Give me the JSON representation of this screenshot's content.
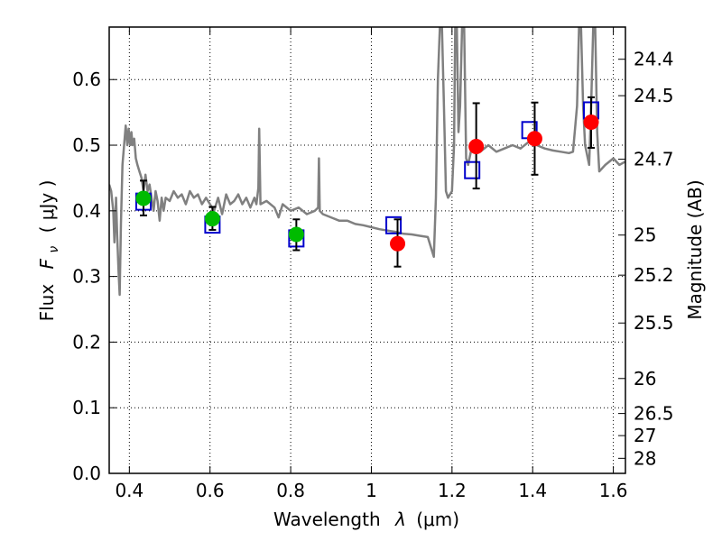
{
  "chart_data": {
    "type": "scatter",
    "xlabel_main": "Wavelength",
    "xlabel_symbol": "λ",
    "xlabel_unit": "(μm)",
    "ylabel_main": "Flux",
    "ylabel_symbol": "F",
    "ylabel_subscript": "ν",
    "ylabel_unit": "( μJy )",
    "y2label": "Magnitude (AB)",
    "xlim": [
      0.35,
      1.63
    ],
    "ylim": [
      0.0,
      0.68
    ],
    "grid": true,
    "x_ticks": [
      {
        "value": 0.4,
        "label": "0.4"
      },
      {
        "value": 0.6,
        "label": "0.6"
      },
      {
        "value": 0.8,
        "label": "0.8"
      },
      {
        "value": 1.0,
        "label": "1"
      },
      {
        "value": 1.2,
        "label": "1.2"
      },
      {
        "value": 1.4,
        "label": "1.4"
      },
      {
        "value": 1.6,
        "label": "1.6"
      }
    ],
    "y_ticks": [
      {
        "value": 0.0,
        "label": "0.0"
      },
      {
        "value": 0.1,
        "label": "0.1"
      },
      {
        "value": 0.2,
        "label": "0.2"
      },
      {
        "value": 0.3,
        "label": "0.3"
      },
      {
        "value": 0.4,
        "label": "0.4"
      },
      {
        "value": 0.5,
        "label": "0.5"
      },
      {
        "value": 0.6,
        "label": "0.6"
      }
    ],
    "y2_ticks": [
      {
        "value": 24.4,
        "label": "24.4"
      },
      {
        "value": 24.5,
        "label": "24.5"
      },
      {
        "value": 24.7,
        "label": "24.7"
      },
      {
        "value": 25.0,
        "label": "25"
      },
      {
        "value": 25.2,
        "label": "25.2"
      },
      {
        "value": 25.5,
        "label": "25.5"
      },
      {
        "value": 26.0,
        "label": "26"
      },
      {
        "value": 26.5,
        "label": "26.5"
      },
      {
        "value": 27.0,
        "label": "27"
      },
      {
        "value": 28.0,
        "label": "28"
      }
    ],
    "model_spectrum": {
      "color": "#808080",
      "points": [
        [
          0.35,
          0.44
        ],
        [
          0.355,
          0.43
        ],
        [
          0.36,
          0.4
        ],
        [
          0.363,
          0.352
        ],
        [
          0.367,
          0.42
        ],
        [
          0.37,
          0.36
        ],
        [
          0.373,
          0.31
        ],
        [
          0.376,
          0.272
        ],
        [
          0.379,
          0.38
        ],
        [
          0.383,
          0.47
        ],
        [
          0.387,
          0.5
        ],
        [
          0.391,
          0.53
        ],
        [
          0.395,
          0.5
        ],
        [
          0.398,
          0.525
        ],
        [
          0.402,
          0.5
        ],
        [
          0.405,
          0.52
        ],
        [
          0.408,
          0.5
        ],
        [
          0.412,
          0.51
        ],
        [
          0.416,
          0.48
        ],
        [
          0.42,
          0.47
        ],
        [
          0.425,
          0.46
        ],
        [
          0.43,
          0.45
        ],
        [
          0.435,
          0.43
        ],
        [
          0.44,
          0.455
        ],
        [
          0.445,
          0.43
        ],
        [
          0.45,
          0.44
        ],
        [
          0.455,
          0.42
        ],
        [
          0.46,
          0.4
        ],
        [
          0.465,
          0.43
        ],
        [
          0.47,
          0.415
        ],
        [
          0.475,
          0.385
        ],
        [
          0.48,
          0.42
        ],
        [
          0.485,
          0.4
        ],
        [
          0.49,
          0.42
        ],
        [
          0.5,
          0.415
        ],
        [
          0.51,
          0.43
        ],
        [
          0.52,
          0.42
        ],
        [
          0.53,
          0.425
        ],
        [
          0.54,
          0.41
        ],
        [
          0.55,
          0.43
        ],
        [
          0.56,
          0.42
        ],
        [
          0.57,
          0.425
        ],
        [
          0.58,
          0.41
        ],
        [
          0.59,
          0.42
        ],
        [
          0.6,
          0.41
        ],
        [
          0.61,
          0.4
        ],
        [
          0.62,
          0.42
        ],
        [
          0.63,
          0.395
        ],
        [
          0.64,
          0.425
        ],
        [
          0.65,
          0.41
        ],
        [
          0.66,
          0.415
        ],
        [
          0.67,
          0.425
        ],
        [
          0.68,
          0.41
        ],
        [
          0.69,
          0.42
        ],
        [
          0.7,
          0.405
        ],
        [
          0.71,
          0.42
        ],
        [
          0.715,
          0.41
        ],
        [
          0.72,
          0.435
        ],
        [
          0.722,
          0.525
        ],
        [
          0.725,
          0.41
        ],
        [
          0.74,
          0.415
        ],
        [
          0.76,
          0.405
        ],
        [
          0.77,
          0.39
        ],
        [
          0.78,
          0.41
        ],
        [
          0.8,
          0.4
        ],
        [
          0.82,
          0.405
        ],
        [
          0.84,
          0.395
        ],
        [
          0.86,
          0.4
        ],
        [
          0.868,
          0.405
        ],
        [
          0.87,
          0.48
        ],
        [
          0.872,
          0.4
        ],
        [
          0.88,
          0.395
        ],
        [
          0.9,
          0.39
        ],
        [
          0.92,
          0.385
        ],
        [
          0.94,
          0.385
        ],
        [
          0.96,
          0.38
        ],
        [
          0.98,
          0.378
        ],
        [
          1.0,
          0.375
        ],
        [
          1.02,
          0.372
        ],
        [
          1.04,
          0.37
        ],
        [
          1.06,
          0.368
        ],
        [
          1.08,
          0.365
        ],
        [
          1.1,
          0.364
        ],
        [
          1.12,
          0.362
        ],
        [
          1.14,
          0.36
        ],
        [
          1.155,
          0.33
        ],
        [
          1.16,
          0.42
        ],
        [
          1.165,
          0.6
        ],
        [
          1.17,
          0.68
        ],
        [
          1.175,
          0.68
        ],
        [
          1.18,
          0.56
        ],
        [
          1.185,
          0.43
        ],
        [
          1.19,
          0.42
        ],
        [
          1.2,
          0.43
        ],
        [
          1.205,
          0.5
        ],
        [
          1.208,
          0.68
        ],
        [
          1.212,
          0.68
        ],
        [
          1.216,
          0.52
        ],
        [
          1.22,
          0.56
        ],
        [
          1.225,
          0.68
        ],
        [
          1.23,
          0.68
        ],
        [
          1.235,
          0.48
        ],
        [
          1.24,
          0.47
        ],
        [
          1.25,
          0.5
        ],
        [
          1.27,
          0.49
        ],
        [
          1.29,
          0.5
        ],
        [
          1.31,
          0.49
        ],
        [
          1.33,
          0.495
        ],
        [
          1.35,
          0.5
        ],
        [
          1.37,
          0.495
        ],
        [
          1.39,
          0.505
        ],
        [
          1.41,
          0.5
        ],
        [
          1.43,
          0.495
        ],
        [
          1.45,
          0.492
        ],
        [
          1.47,
          0.49
        ],
        [
          1.49,
          0.488
        ],
        [
          1.5,
          0.49
        ],
        [
          1.51,
          0.56
        ],
        [
          1.515,
          0.68
        ],
        [
          1.52,
          0.68
        ],
        [
          1.525,
          0.56
        ],
        [
          1.53,
          0.5
        ],
        [
          1.54,
          0.47
        ],
        [
          1.545,
          0.56
        ],
        [
          1.55,
          0.68
        ],
        [
          1.555,
          0.68
        ],
        [
          1.56,
          0.52
        ],
        [
          1.565,
          0.46
        ],
        [
          1.58,
          0.47
        ],
        [
          1.6,
          0.48
        ],
        [
          1.615,
          0.47
        ],
        [
          1.63,
          0.475
        ]
      ]
    },
    "model_photometry": {
      "marker": "open-square",
      "color": "#0000cc",
      "points": [
        {
          "x": 0.435,
          "y": 0.414
        },
        {
          "x": 0.606,
          "y": 0.379
        },
        {
          "x": 0.814,
          "y": 0.358
        },
        {
          "x": 1.055,
          "y": 0.378
        },
        {
          "x": 1.25,
          "y": 0.462
        },
        {
          "x": 1.392,
          "y": 0.523
        },
        {
          "x": 1.545,
          "y": 0.553
        }
      ]
    },
    "observed_optical": {
      "marker": "filled-circle",
      "color": "#00bb00",
      "points": [
        {
          "x": 0.435,
          "y": 0.419,
          "err_lo": 0.393,
          "err_hi": 0.446
        },
        {
          "x": 0.606,
          "y": 0.388,
          "err_lo": 0.371,
          "err_hi": 0.406
        },
        {
          "x": 0.814,
          "y": 0.364,
          "err_lo": 0.34,
          "err_hi": 0.387
        }
      ]
    },
    "observed_nir": {
      "marker": "filled-circle",
      "color": "#ff0000",
      "points": [
        {
          "x": 1.065,
          "y": 0.35,
          "err_lo": 0.315,
          "err_hi": 0.387
        },
        {
          "x": 1.26,
          "y": 0.498,
          "err_lo": 0.434,
          "err_hi": 0.564
        },
        {
          "x": 1.405,
          "y": 0.51,
          "err_lo": 0.455,
          "err_hi": 0.565
        },
        {
          "x": 1.545,
          "y": 0.535,
          "err_lo": 0.496,
          "err_hi": 0.573
        }
      ]
    }
  }
}
